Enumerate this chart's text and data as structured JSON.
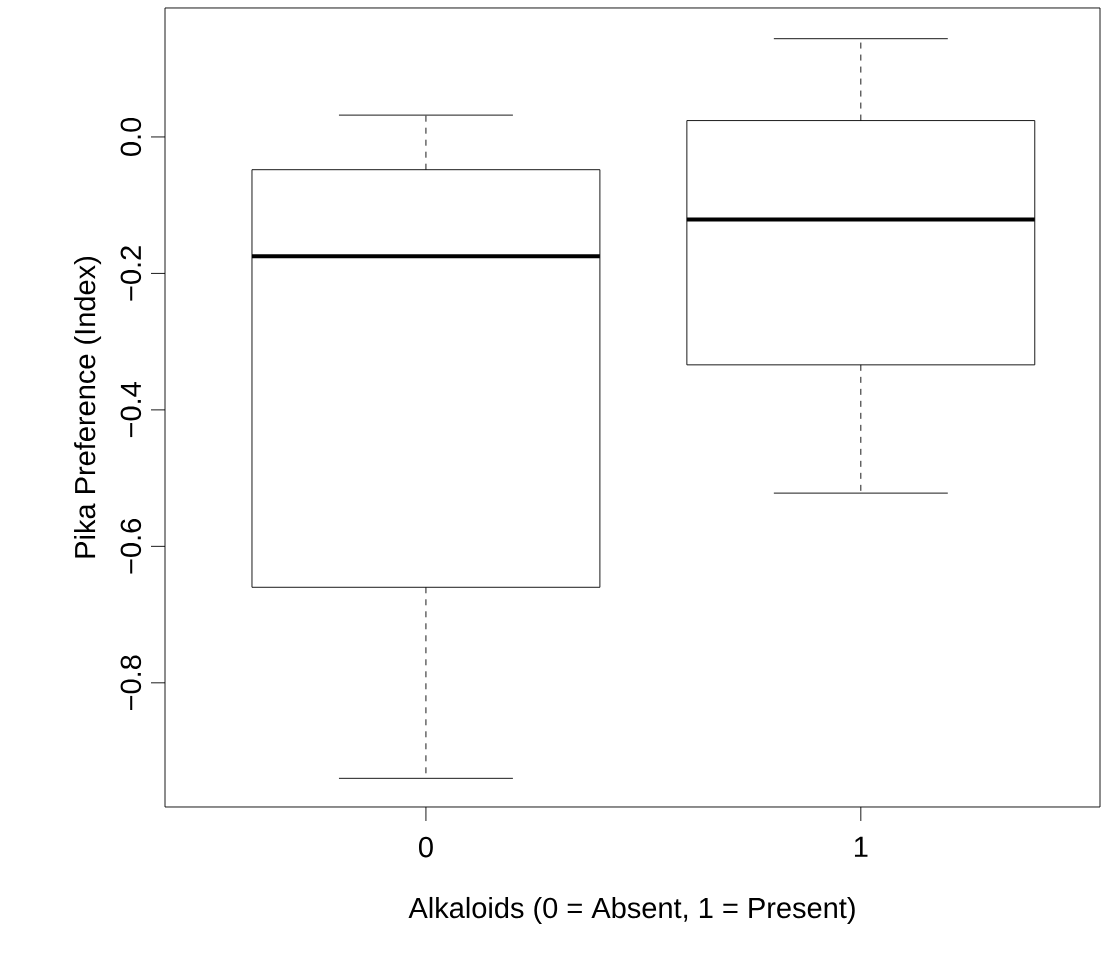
{
  "chart_data": {
    "type": "box",
    "xlabel": "Alkaloids (0 = Absent, 1 = Present)",
    "ylabel": "Pika Preference (Index)",
    "categories": [
      "0",
      "1"
    ],
    "boxes": [
      {
        "low": -0.94,
        "q1": -0.66,
        "median": -0.175,
        "q3": -0.048,
        "high": 0.032
      },
      {
        "low": -0.522,
        "q1": -0.334,
        "median": -0.121,
        "q3": 0.024,
        "high": 0.144
      }
    ],
    "ylim": [
      -0.982,
      0.189
    ],
    "yticks": [
      {
        "value": -0.8,
        "label": "−0.8"
      },
      {
        "value": -0.6,
        "label": "−0.6"
      },
      {
        "value": -0.4,
        "label": "−0.4"
      },
      {
        "value": -0.2,
        "label": "−0.2"
      },
      {
        "value": 0,
        "label": "0.0"
      }
    ],
    "grid": false
  }
}
